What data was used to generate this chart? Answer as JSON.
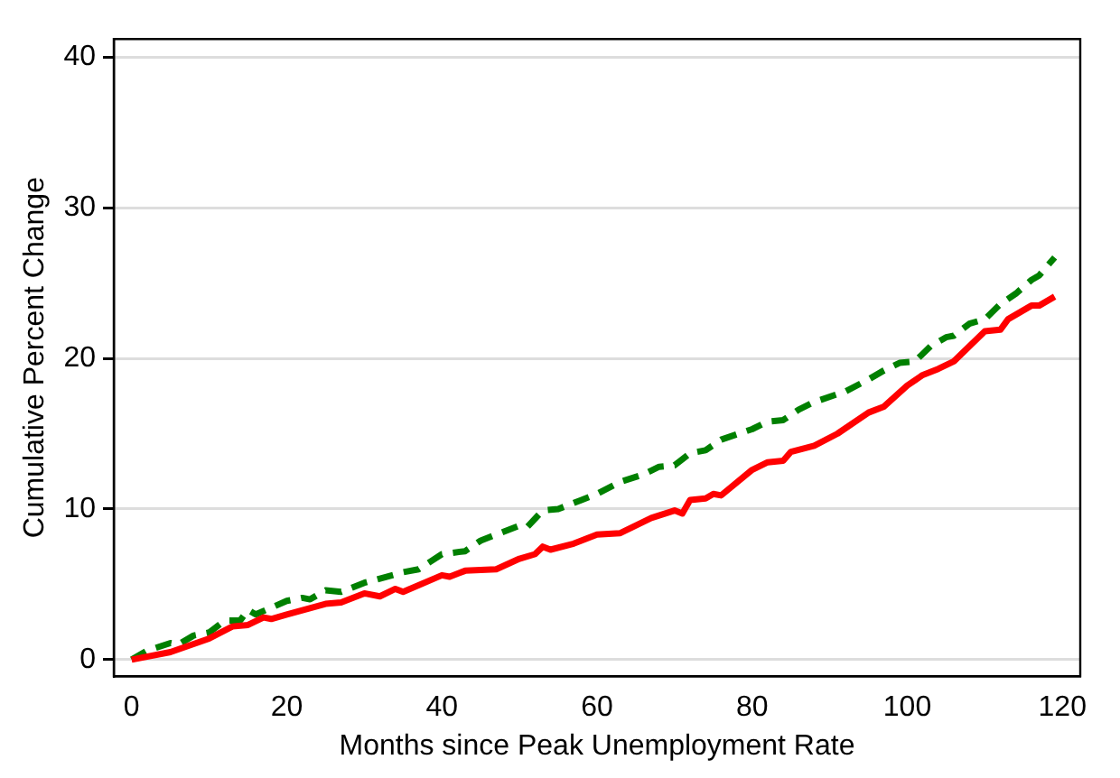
{
  "chart_data": {
    "type": "line",
    "xlabel": "Months since Peak Unemployment Rate",
    "ylabel": "Cumulative Percent Change",
    "xlim": [
      -2.3,
      122.3
    ],
    "xticks": [
      0,
      20,
      40,
      60,
      80,
      100,
      120
    ],
    "ylim": [
      -1.1,
      41.2
    ],
    "yticks": [
      0,
      10,
      20,
      30,
      40
    ],
    "grid": "y",
    "legend": false,
    "marker": "none",
    "series": [
      {
        "color": "#ff0000",
        "line_style": "solid",
        "x": [
          0,
          5,
          10,
          13,
          15,
          17,
          18,
          20,
          25,
          27,
          30,
          32,
          34,
          35,
          40,
          41,
          43,
          47,
          50,
          52,
          53,
          54,
          57,
          60,
          63,
          67,
          70,
          71,
          72,
          74,
          75,
          76,
          80,
          82,
          84,
          85,
          88,
          91,
          95,
          97,
          100,
          102,
          104,
          106,
          110,
          112,
          113,
          116,
          117,
          119
        ],
        "values": [
          0,
          0.5,
          1.4,
          2.2,
          2.3,
          2.8,
          2.7,
          3.0,
          3.7,
          3.8,
          4.4,
          4.2,
          4.7,
          4.5,
          5.6,
          5.5,
          5.9,
          6.0,
          6.7,
          7.0,
          7.5,
          7.3,
          7.7,
          8.3,
          8.4,
          9.4,
          9.9,
          9.7,
          10.6,
          10.7,
          11.0,
          10.9,
          12.6,
          13.1,
          13.2,
          13.8,
          14.2,
          15.0,
          16.4,
          16.8,
          18.2,
          18.9,
          19.3,
          19.8,
          21.8,
          21.9,
          22.6,
          23.5,
          23.5,
          24.1
        ]
      },
      {
        "color": "#008000",
        "line_style": "dashed",
        "x": [
          0,
          2,
          5,
          6,
          8,
          10,
          12,
          14,
          15,
          16,
          20,
          22,
          23,
          25,
          27,
          30,
          35,
          37,
          40,
          43,
          45,
          50,
          51,
          53,
          55,
          58,
          60,
          63,
          66,
          68,
          70,
          72,
          74,
          76,
          80,
          82,
          84,
          86,
          88,
          92,
          95,
          97,
          99,
          101,
          103,
          105,
          106,
          108,
          110,
          112,
          114,
          116,
          117,
          119
        ],
        "values": [
          0,
          0.6,
          1.1,
          1.0,
          1.6,
          1.8,
          2.6,
          2.6,
          3.3,
          3.0,
          3.9,
          4.1,
          4.0,
          4.6,
          4.5,
          5.1,
          5.8,
          6.0,
          7.0,
          7.2,
          7.9,
          8.9,
          8.8,
          9.9,
          10.0,
          10.6,
          11.0,
          11.8,
          12.3,
          12.8,
          12.9,
          13.7,
          13.9,
          14.6,
          15.3,
          15.8,
          15.9,
          16.6,
          17.1,
          17.8,
          18.6,
          19.2,
          19.7,
          19.8,
          20.8,
          21.4,
          21.5,
          22.3,
          22.6,
          23.6,
          24.3,
          25.2,
          25.5,
          26.7
        ]
      }
    ]
  }
}
